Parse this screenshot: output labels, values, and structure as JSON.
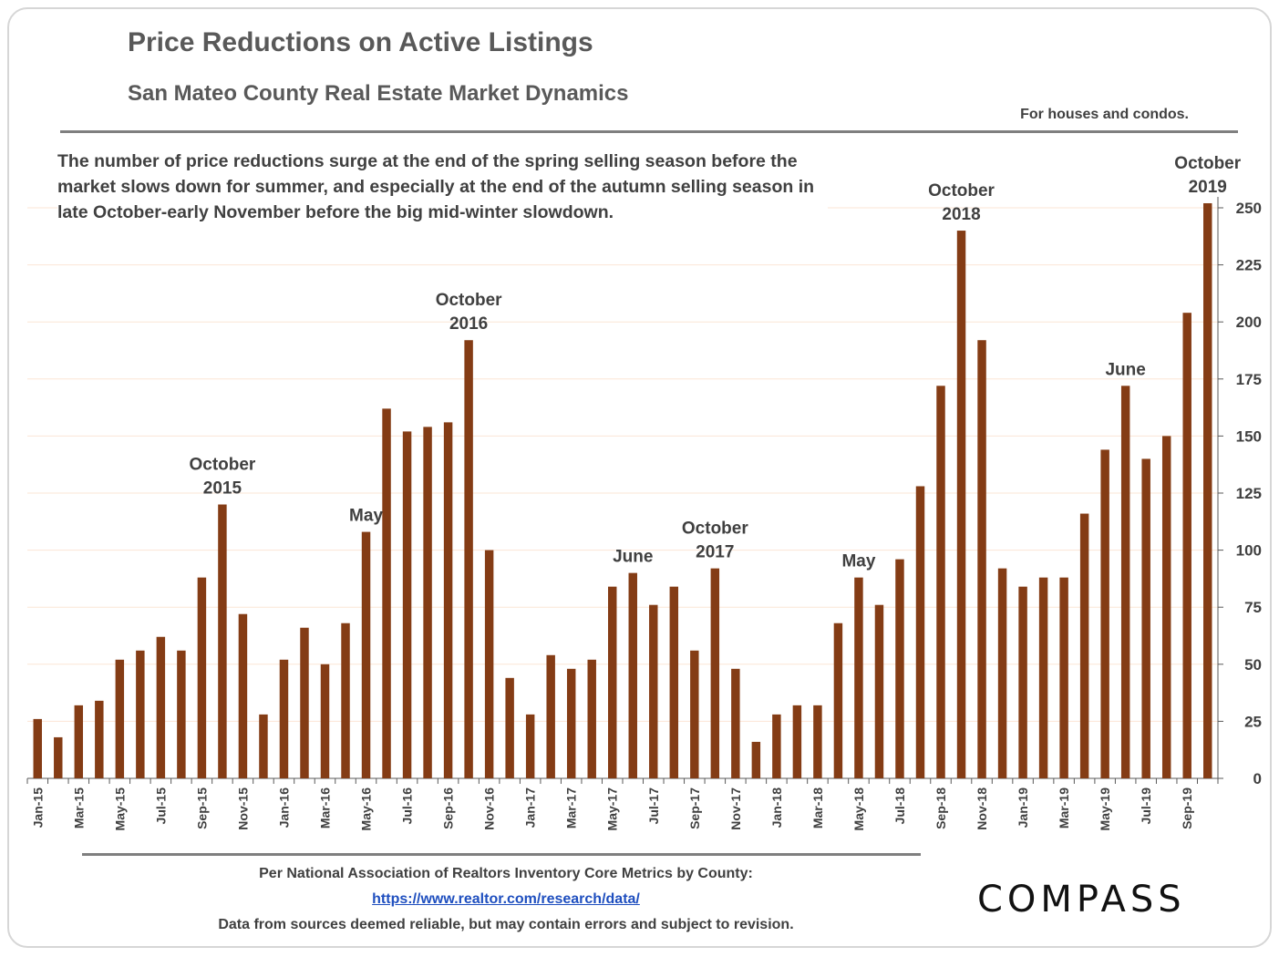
{
  "title": "Price Reductions on Active Listings",
  "subtitle": "San Mateo County Real Estate Market Dynamics",
  "note": "For houses and condos.",
  "description": "The number of price reductions surge at the end of the spring selling season before the market slows down for summer, and especially at the end of the autumn selling season in late October-early November before the big mid-winter slowdown.",
  "source_line": "Per National Association of Realtors Inventory Core Metrics by County:",
  "source_url": "https://www.realtor.com/research/data/",
  "disclaimer": "Data from sources deemed reliable, but may contain errors and subject to revision.",
  "logo": "COMPASS",
  "chart_data": {
    "type": "bar",
    "title": "Price Reductions on Active Listings",
    "bar_color": "#843c15",
    "grid": true,
    "grid_color": "#fbe5d6",
    "y_axis_side": "right",
    "ylim": [
      0,
      250
    ],
    "y_ticks": [
      0,
      25,
      50,
      75,
      100,
      125,
      150,
      175,
      200,
      225,
      250
    ],
    "categories": [
      "Jan-15",
      "Feb-15",
      "Mar-15",
      "Apr-15",
      "May-15",
      "Jun-15",
      "Jul-15",
      "Aug-15",
      "Sep-15",
      "Oct-15",
      "Nov-15",
      "Dec-15",
      "Jan-16",
      "Feb-16",
      "Mar-16",
      "Apr-16",
      "May-16",
      "Jun-16",
      "Jul-16",
      "Aug-16",
      "Sep-16",
      "Oct-16",
      "Nov-16",
      "Dec-16",
      "Jan-17",
      "Feb-17",
      "Mar-17",
      "Apr-17",
      "May-17",
      "Jun-17",
      "Jul-17",
      "Aug-17",
      "Sep-17",
      "Oct-17",
      "Nov-17",
      "Dec-17",
      "Jan-18",
      "Feb-18",
      "Mar-18",
      "Apr-18",
      "May-18",
      "Jun-18",
      "Jul-18",
      "Aug-18",
      "Sep-18",
      "Oct-18",
      "Nov-18",
      "Dec-18",
      "Jan-19",
      "Feb-19",
      "Mar-19",
      "Apr-19",
      "May-19",
      "Jun-19",
      "Jul-19",
      "Aug-19",
      "Sep-19",
      "Oct-19"
    ],
    "x_tick_labels": [
      "Jan-15",
      "Mar-15",
      "May-15",
      "Jul-15",
      "Sep-15",
      "Nov-15",
      "Jan-16",
      "Mar-16",
      "May-16",
      "Jul-16",
      "Sep-16",
      "Nov-16",
      "Jan-17",
      "Mar-17",
      "May-17",
      "Jul-17",
      "Sep-17",
      "Nov-17",
      "Jan-18",
      "Mar-18",
      "May-18",
      "Jul-18",
      "Sep-18",
      "Nov-18",
      "Jan-19",
      "Mar-19",
      "May-19",
      "Jul-19",
      "Sep-19"
    ],
    "values": [
      26,
      18,
      32,
      34,
      52,
      56,
      62,
      56,
      88,
      120,
      72,
      28,
      52,
      66,
      50,
      68,
      108,
      162,
      152,
      154,
      156,
      192,
      100,
      44,
      28,
      54,
      48,
      52,
      84,
      90,
      76,
      84,
      56,
      92,
      48,
      16,
      28,
      32,
      32,
      68,
      88,
      76,
      96,
      128,
      172,
      240,
      192,
      92,
      84,
      88,
      88,
      116,
      144,
      172,
      140,
      150,
      204,
      252
    ],
    "annotations": [
      {
        "index": 9,
        "lines": [
          "October",
          "2015"
        ]
      },
      {
        "index": 16,
        "lines": [
          "May"
        ]
      },
      {
        "index": 21,
        "lines": [
          "October",
          "2016"
        ]
      },
      {
        "index": 29,
        "lines": [
          "June"
        ]
      },
      {
        "index": 33,
        "lines": [
          "October",
          "2017"
        ]
      },
      {
        "index": 40,
        "lines": [
          "May"
        ]
      },
      {
        "index": 45,
        "lines": [
          "October",
          "2018"
        ]
      },
      {
        "index": 53,
        "lines": [
          "June"
        ]
      },
      {
        "index": 57,
        "lines": [
          "October",
          "2019"
        ]
      }
    ]
  }
}
